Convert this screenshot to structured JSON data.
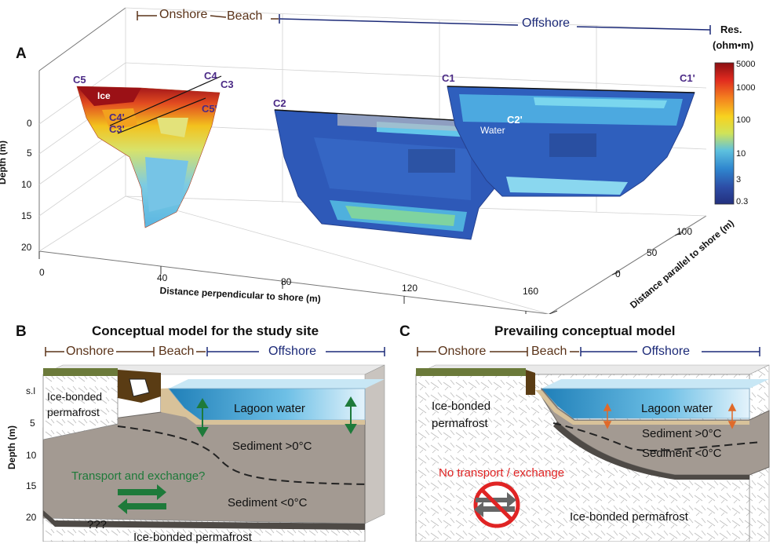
{
  "panel_a": {
    "letter": "A",
    "zones": {
      "onshore": "Onshore",
      "beach": "Beach",
      "offshore": "Offshore"
    },
    "depth_axis": {
      "title": "Depth (m)",
      "ticks": [
        "0",
        "5",
        "10",
        "15",
        "20"
      ]
    },
    "x_axis": {
      "title": "Distance perpendicular to shore (m)",
      "ticks": [
        "0",
        "40",
        "80",
        "120",
        "160"
      ]
    },
    "y_axis": {
      "title": "Distance parallel to shore (m)",
      "ticks": [
        "0",
        "50",
        "100"
      ]
    },
    "colorbar": {
      "title_line1": "Res.",
      "title_line2": "(ohm•m)",
      "ticks": [
        "5000",
        "1000",
        "100",
        "10",
        "3",
        "0.3"
      ]
    },
    "sections": {
      "c5": "C5",
      "c4": "C4",
      "c3": "C3",
      "c4p": "C4'",
      "c3p": "C3'",
      "c5p": "C5'",
      "c2": "C2",
      "c2p": "C2'",
      "c1": "C1",
      "c1p": "C1'"
    },
    "ice_label": "Ice",
    "water_label": "Water"
  },
  "panel_b": {
    "letter": "B",
    "title": "Conceptual model for the study site",
    "zones": {
      "onshore": "Onshore",
      "beach": "Beach",
      "offshore": "Offshore"
    },
    "depth_axis": {
      "title": "Depth (m)",
      "ticks": [
        "s.l",
        "5",
        "10",
        "15",
        "20"
      ]
    },
    "labels": {
      "permafrost_top": "Ice-bonded\npermafrost",
      "lagoon": "Lagoon water",
      "warm": "Sediment >0°C",
      "transport": "Transport and exchange?",
      "cold": "Sediment <0°C",
      "unknown": "???",
      "permafrost_bottom": "Ice-bonded permafrost"
    }
  },
  "panel_c": {
    "letter": "C",
    "title": "Prevailing conceptual model",
    "zones": {
      "onshore": "Onshore",
      "beach": "Beach",
      "offshore": "Offshore"
    },
    "labels": {
      "permafrost_top": "Ice-bonded\npermafrost",
      "lagoon": "Lagoon water",
      "warm": "Sediment >0°C",
      "cold": "Sediment <0°C",
      "no_transport": "No transport / exchange",
      "permafrost_bottom": "Ice-bonded permafrost"
    }
  },
  "colors": {
    "onshore": "#5a3319",
    "offshore": "#1c2a78",
    "section_label": "#4b2a86",
    "transport": "#1e7a3a",
    "no_transport": "#e02424",
    "sediment": "#a39a92",
    "water": "#3b9fc9"
  }
}
